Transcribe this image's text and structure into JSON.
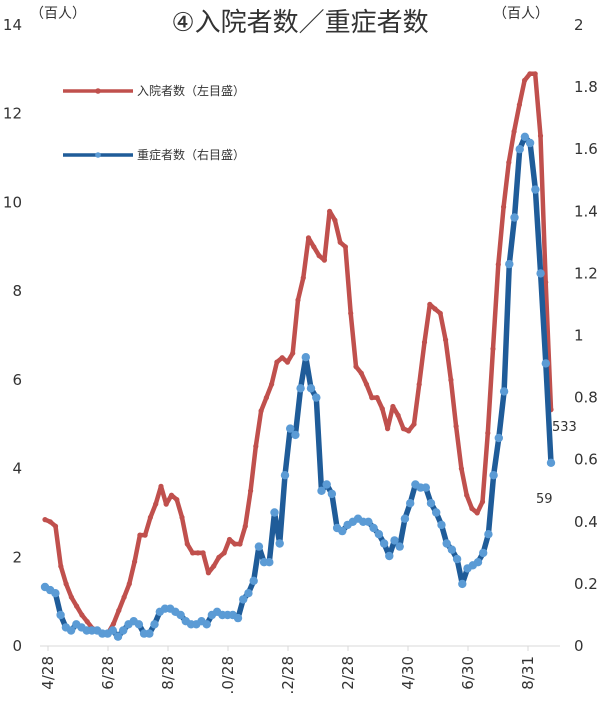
{
  "chart_data": {
    "type": "line",
    "title": "④入院者数／重症者数",
    "left_axis": {
      "unit_label": "（百人）",
      "min": 0,
      "max": 14,
      "ticks": [
        "0",
        "2",
        "4",
        "6",
        "8",
        "10",
        "12",
        "14"
      ]
    },
    "right_axis": {
      "unit_label": "（百人）",
      "min": 0,
      "max": 2,
      "ticks": [
        "0",
        "0.2",
        "0.4",
        "0.6",
        "0.8",
        "1",
        "1.2",
        "1.4",
        "1.6",
        "1.8",
        "2"
      ]
    },
    "x_tick_labels": [
      "4/28",
      "6/28",
      "8/28",
      ".0/28",
      ".2/28",
      "2/28",
      "4/30",
      "6/30",
      "8/31"
    ],
    "legend_position": "top-left",
    "grid": false,
    "series": [
      {
        "name": "入院者数（左目盛）",
        "color": "#c0504d",
        "axis": "left",
        "end_label": "533",
        "values": [
          2.85,
          2.8,
          2.7,
          1.8,
          1.4,
          1.1,
          0.9,
          0.7,
          0.55,
          0.4,
          0.35,
          0.3,
          0.3,
          0.5,
          0.8,
          1.1,
          1.4,
          1.9,
          2.5,
          2.5,
          2.9,
          3.2,
          3.6,
          3.2,
          3.4,
          3.3,
          2.9,
          2.3,
          2.1,
          2.1,
          2.1,
          1.65,
          1.8,
          2.0,
          2.1,
          2.4,
          2.3,
          2.3,
          2.7,
          3.5,
          4.5,
          5.3,
          5.6,
          5.9,
          6.4,
          6.5,
          6.4,
          6.6,
          7.8,
          8.3,
          9.2,
          9.0,
          8.8,
          8.7,
          9.8,
          9.6,
          9.1,
          9.0,
          7.5,
          6.3,
          6.15,
          5.9,
          5.6,
          5.6,
          5.35,
          4.9,
          5.4,
          5.2,
          4.9,
          4.85,
          5.0,
          5.9,
          6.85,
          7.7,
          7.6,
          7.5,
          6.9,
          6.0,
          4.95,
          4.0,
          3.4,
          3.1,
          3.0,
          3.25,
          4.8,
          6.7,
          8.6,
          9.9,
          10.9,
          11.6,
          12.2,
          12.75,
          12.9,
          12.9,
          11.5,
          8.2,
          5.33
        ]
      },
      {
        "name": "重症者数（右目盛）",
        "color": "#1f5c99",
        "marker_color": "#5b9bd5",
        "axis": "right",
        "end_label": "59",
        "values": [
          0.19,
          0.18,
          0.17,
          0.1,
          0.06,
          0.05,
          0.07,
          0.06,
          0.05,
          0.05,
          0.05,
          0.04,
          0.04,
          0.05,
          0.03,
          0.05,
          0.07,
          0.08,
          0.07,
          0.04,
          0.04,
          0.07,
          0.11,
          0.12,
          0.12,
          0.11,
          0.1,
          0.08,
          0.07,
          0.07,
          0.08,
          0.07,
          0.1,
          0.11,
          0.1,
          0.1,
          0.1,
          0.09,
          0.15,
          0.17,
          0.21,
          0.32,
          0.27,
          0.27,
          0.43,
          0.33,
          0.55,
          0.7,
          0.68,
          0.83,
          0.93,
          0.83,
          0.8,
          0.5,
          0.52,
          0.49,
          0.38,
          0.37,
          0.39,
          0.4,
          0.41,
          0.4,
          0.4,
          0.38,
          0.36,
          0.33,
          0.29,
          0.34,
          0.32,
          0.41,
          0.46,
          0.52,
          0.51,
          0.51,
          0.46,
          0.43,
          0.39,
          0.33,
          0.31,
          0.28,
          0.2,
          0.25,
          0.26,
          0.27,
          0.3,
          0.36,
          0.55,
          0.67,
          0.82,
          1.23,
          1.38,
          1.6,
          1.64,
          1.62,
          1.47,
          1.2,
          0.91,
          0.59
        ]
      }
    ]
  }
}
